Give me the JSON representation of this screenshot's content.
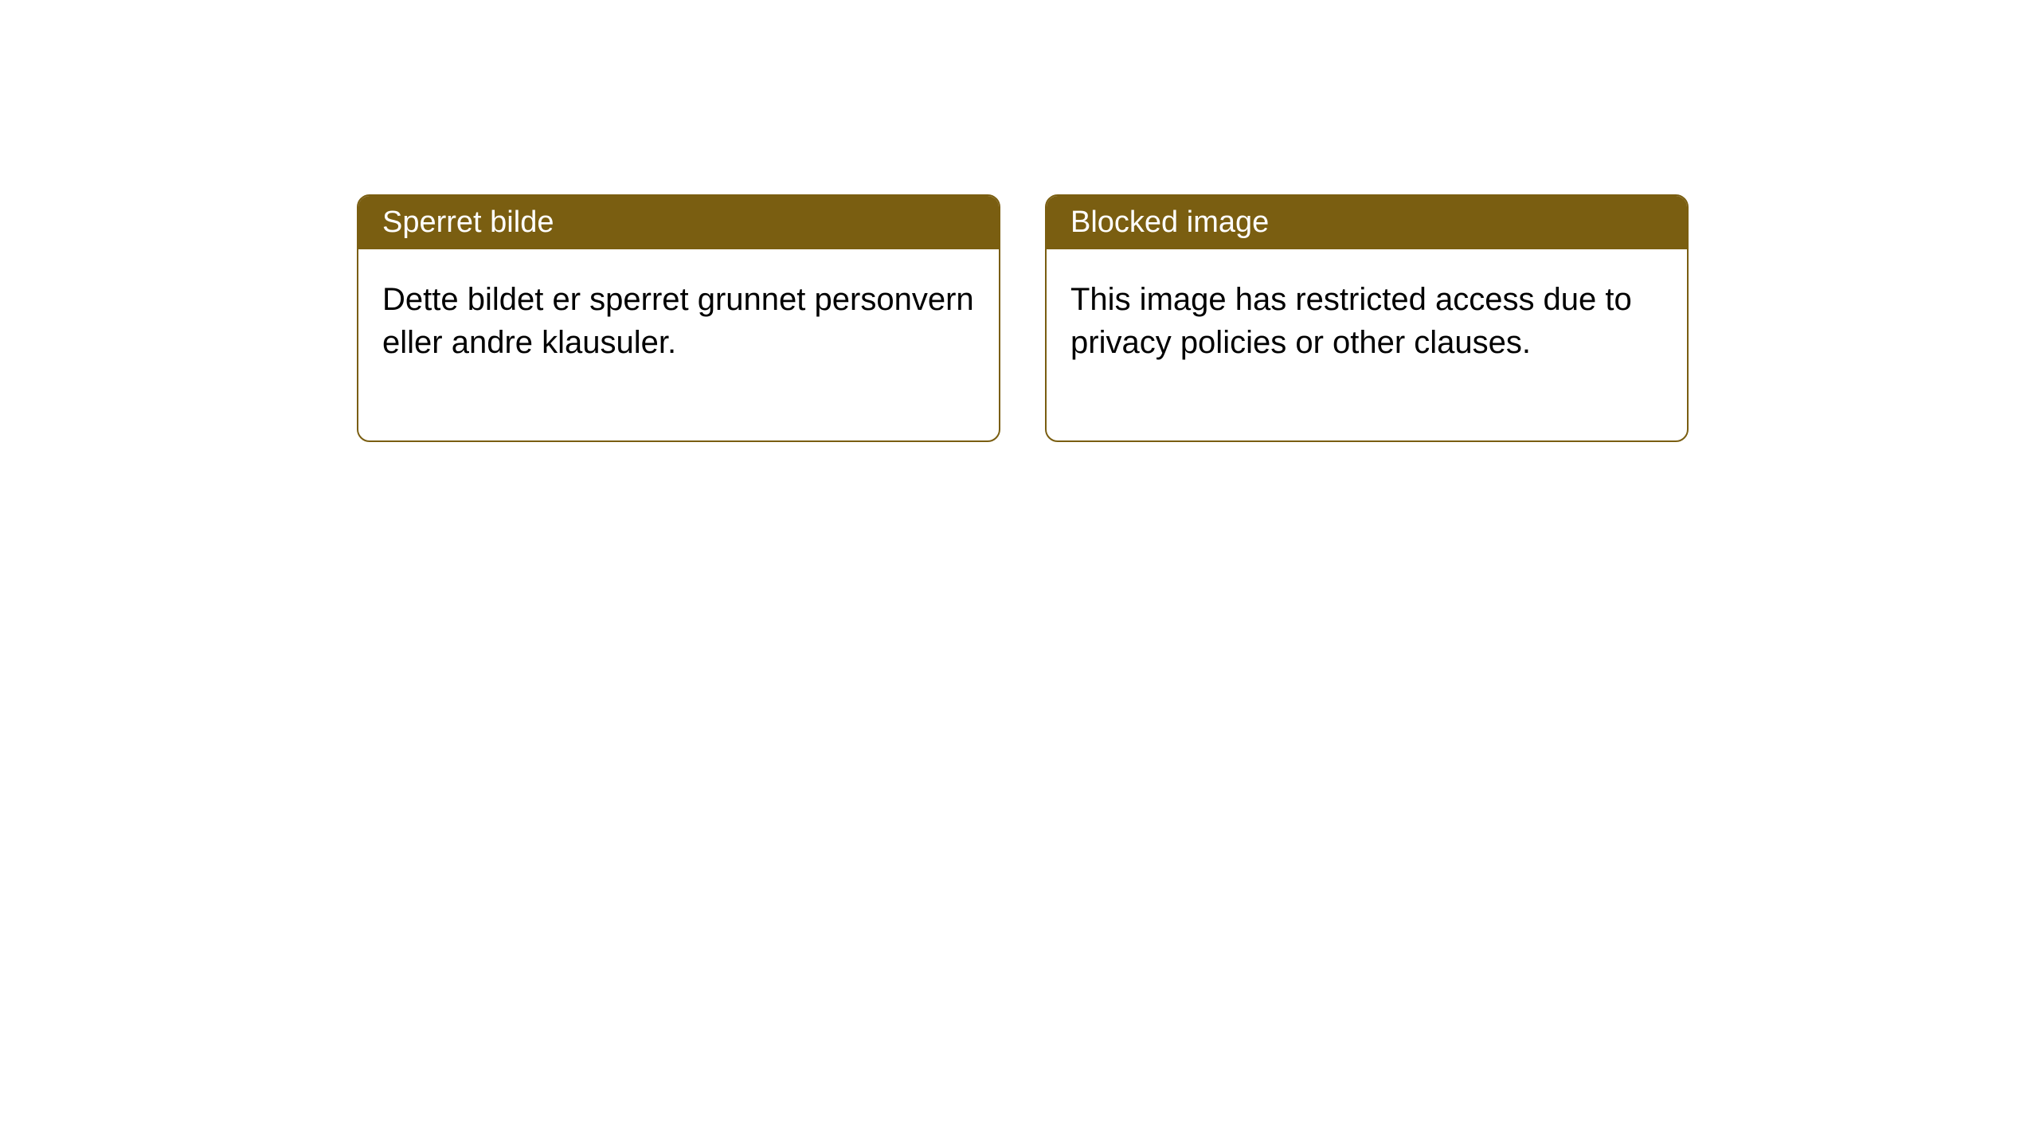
{
  "notices": {
    "left": {
      "title": "Sperret bilde",
      "body": "Dette bildet er sperret grunnet personvern eller andre klausuler."
    },
    "right": {
      "title": "Blocked image",
      "body": "This image has restricted access due to privacy policies or other clauses."
    }
  },
  "style": {
    "header_bg_color": "#7a5e11",
    "header_text_color": "#ffffff",
    "border_color": "#7a5e11",
    "body_text_color": "#000000",
    "background_color": "#ffffff",
    "border_radius": 16,
    "title_fontsize": 38,
    "body_fontsize": 40
  }
}
